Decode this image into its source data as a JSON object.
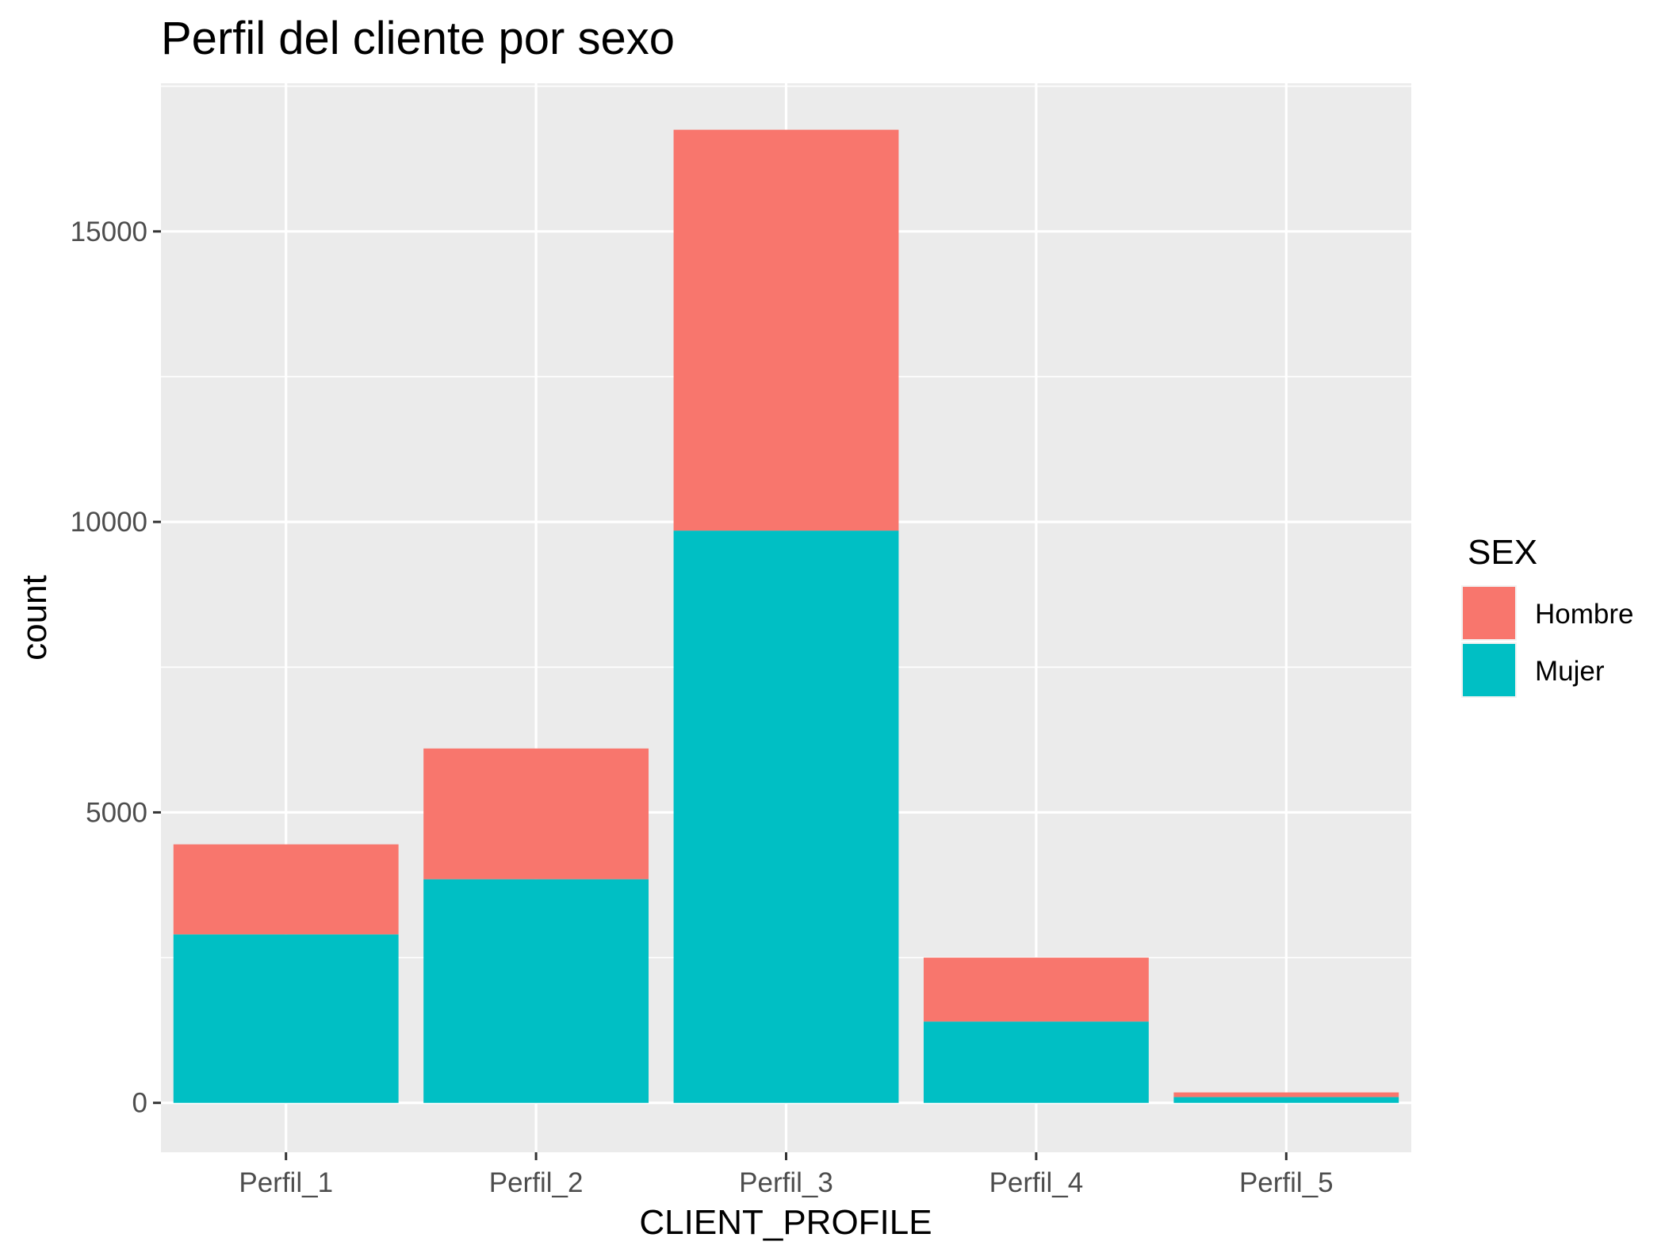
{
  "chart_data": {
    "type": "bar",
    "stacked": true,
    "title": "Perfil del cliente por sexo",
    "xlabel": "CLIENT_PROFILE",
    "ylabel": "count",
    "categories": [
      "Perfil_1",
      "Perfil_2",
      "Perfil_3",
      "Perfil_4",
      "Perfil_5"
    ],
    "series": [
      {
        "name": "Mujer",
        "color": "#00BFC4",
        "values": [
          2900,
          3850,
          9850,
          1400,
          100
        ]
      },
      {
        "name": "Hombre",
        "color": "#F8766D",
        "values": [
          1550,
          2250,
          6900,
          1100,
          80
        ]
      }
    ],
    "yticks": [
      0,
      5000,
      10000,
      15000
    ],
    "ytick_labels": [
      "0",
      "5000",
      "10000",
      "15000"
    ],
    "ylim": [
      -850,
      17550
    ],
    "grid": true,
    "panel_background": "#EBEBEB",
    "legend": {
      "title": "SEX",
      "position": "right",
      "entries": [
        {
          "label": "Hombre",
          "color": "#F8766D"
        },
        {
          "label": "Mujer",
          "color": "#00BFC4"
        }
      ]
    }
  }
}
